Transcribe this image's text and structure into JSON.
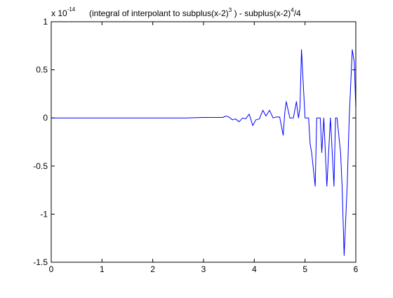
{
  "chart_data": {
    "type": "line",
    "title": "(integral of interpolant to subplus(x-2)^3 ) - subplus(x-2)^4/4",
    "title_parts": {
      "pre": "(integral of interpolant to subplus(x-2)",
      "exp1": "3",
      "mid": " ) - subplus(x-2)",
      "exp2": "4",
      "post": "/4"
    },
    "multiplier": {
      "base": "x 10",
      "exponent": "-14"
    },
    "xlabel": "",
    "ylabel": "",
    "xlim": [
      0,
      6
    ],
    "ylim": [
      -1.5,
      1
    ],
    "x_ticks": [
      0,
      1,
      2,
      3,
      4,
      5,
      6
    ],
    "y_ticks": [
      -1.5,
      -1,
      -0.5,
      0,
      0.5,
      1
    ],
    "y_tick_labels": [
      "-1.5",
      "-1",
      "-0.5",
      "0",
      "0.5",
      "1"
    ],
    "grid": false,
    "line_color": "#0000ff",
    "series": [
      {
        "x": [
          0,
          2.66,
          3.0,
          3.3,
          3.38,
          3.44,
          3.5,
          3.57,
          3.63,
          3.7,
          3.77,
          3.83,
          3.9,
          3.97,
          4.03,
          4.1,
          4.17,
          4.23,
          4.3,
          4.37,
          4.43,
          4.5,
          4.57,
          4.6,
          4.63,
          4.7,
          4.77,
          4.83,
          4.87,
          4.9,
          4.93,
          5.0,
          5.07,
          5.1,
          5.13,
          5.2,
          5.23,
          5.3,
          5.33,
          5.37,
          5.43,
          5.5,
          5.57,
          5.6,
          5.63,
          5.7,
          5.73,
          5.77,
          5.83,
          5.87,
          5.93,
          5.97,
          6.0
        ],
        "y": [
          0,
          0,
          0.005,
          0.005,
          0.005,
          0.02,
          0.01,
          -0.02,
          -0.01,
          -0.04,
          0.0,
          -0.01,
          0.04,
          -0.08,
          -0.02,
          -0.01,
          0.08,
          0.02,
          0.08,
          0.0,
          0.01,
          0.01,
          -0.18,
          0.05,
          0.17,
          0.0,
          0.0,
          0.17,
          0.0,
          0.1,
          0.71,
          0.0,
          0.0,
          -0.27,
          -0.36,
          -0.71,
          0.0,
          0.0,
          -0.36,
          0.0,
          -0.71,
          0.0,
          -0.71,
          0.0,
          0.0,
          -0.36,
          -0.71,
          -1.43,
          -0.71,
          0.0,
          0.71,
          0.58,
          0.1
        ]
      }
    ]
  }
}
